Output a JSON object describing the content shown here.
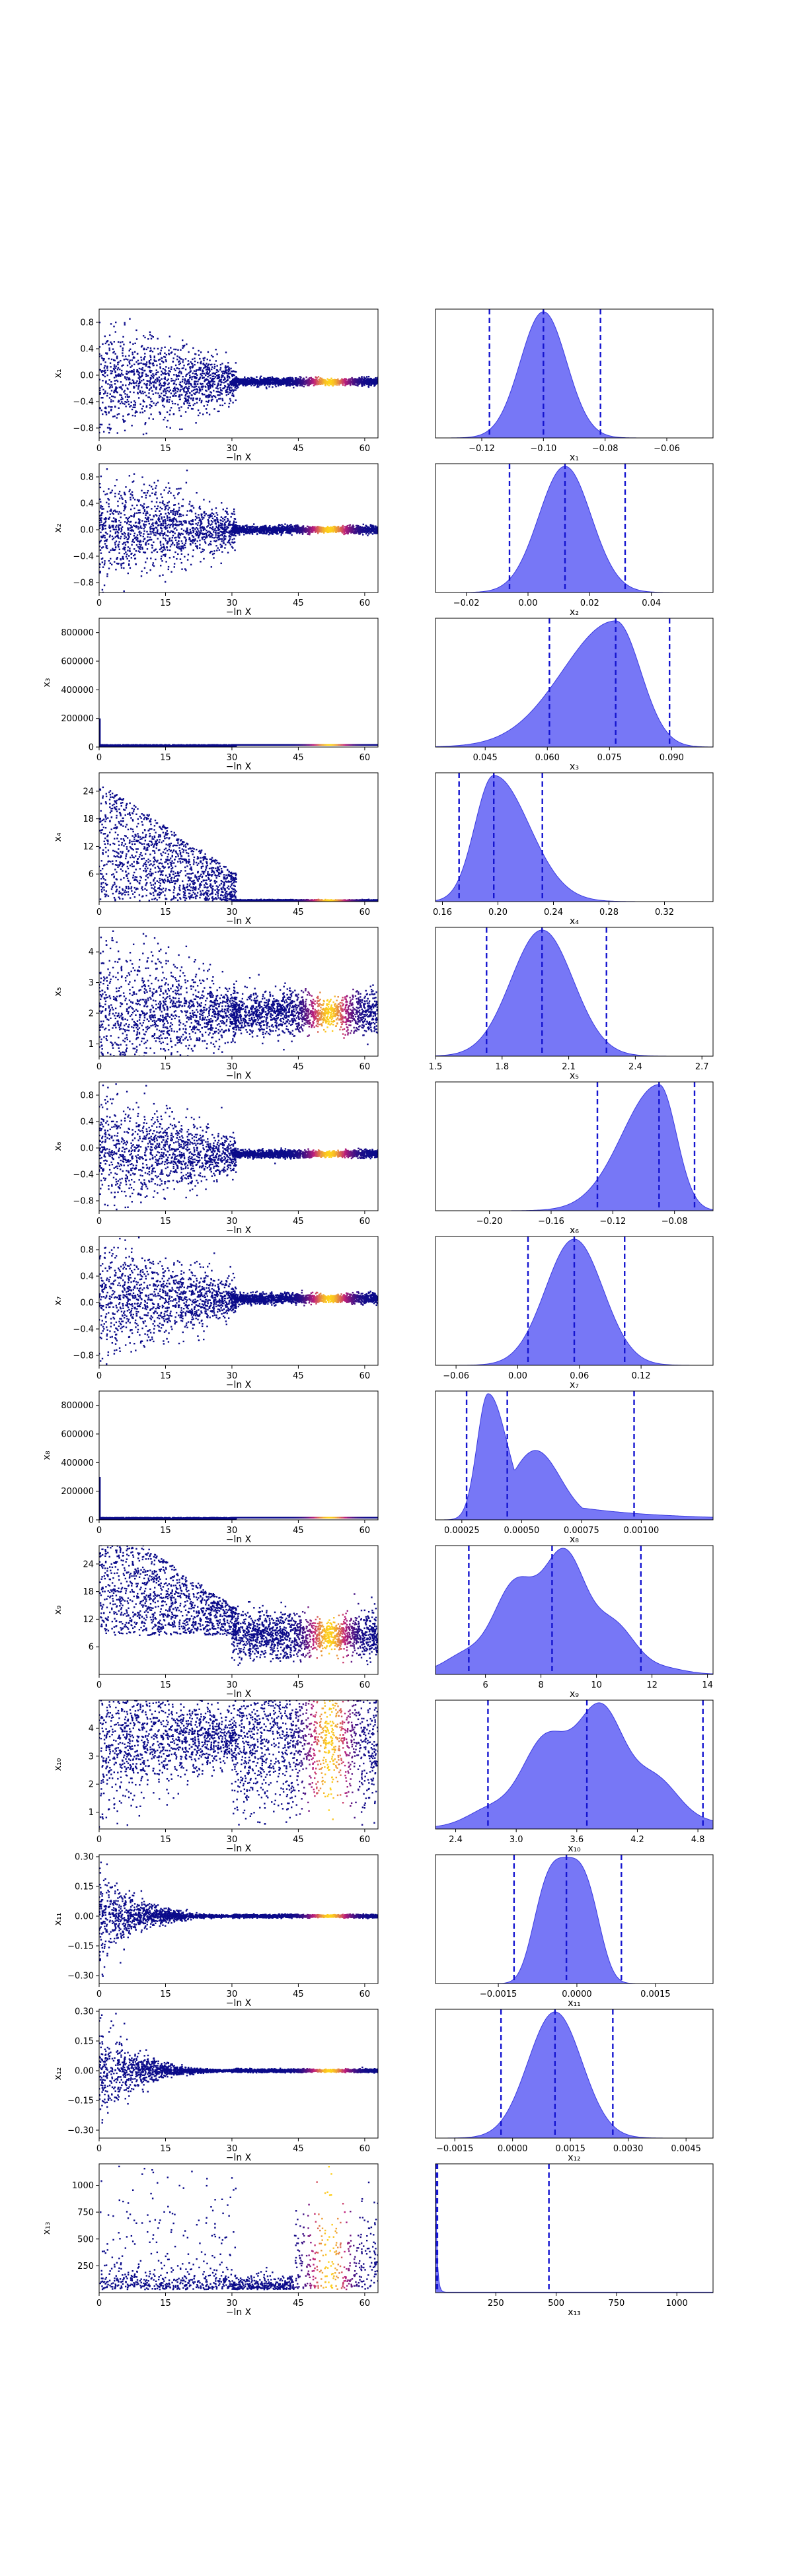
{
  "figure": {
    "trace_x_label": "−ln X",
    "trace_x_ticks": [
      0,
      15,
      30,
      45,
      60
    ],
    "trace_x_range": [
      0,
      63
    ],
    "colors": {
      "posterior_fill": "#6b6bf5",
      "posterior_line": "#3a3ae0",
      "quantile_line": "#1515d0",
      "trace_low": "#0b0b8a",
      "trace_mid": "#c0207a",
      "trace_high": "#ffd21a"
    }
  },
  "chart_data": [
    {
      "parameter": "x₁",
      "ylabel": "x₁",
      "trace": {
        "type": "scatter",
        "yticks": [
          -0.8,
          -0.4,
          0.0,
          0.4,
          0.8
        ],
        "ylim": [
          -0.95,
          1.0
        ],
        "converge": -0.1,
        "spread": 0.85,
        "tailSpread": 0.03
      },
      "posterior": {
        "type": "area",
        "xlabel": "x₁",
        "xlim": [
          -0.135,
          -0.045
        ],
        "xticks": [
          -0.12,
          -0.1,
          -0.08,
          -0.06
        ],
        "quantiles": [
          -0.1175,
          -0.1,
          -0.0815
        ],
        "shape": "gauss",
        "mean": -0.1,
        "sd": 0.0075
      }
    },
    {
      "parameter": "x₂",
      "ylabel": "x₂",
      "trace": {
        "type": "scatter",
        "yticks": [
          -0.8,
          -0.4,
          0.0,
          0.4,
          0.8
        ],
        "ylim": [
          -0.95,
          1.0
        ],
        "converge": 0.0,
        "spread": 0.85,
        "tailSpread": 0.03
      },
      "posterior": {
        "type": "area",
        "xlabel": "x₂",
        "xlim": [
          -0.03,
          0.06
        ],
        "xticks": [
          -0.02,
          0.0,
          0.02,
          0.04
        ],
        "quantiles": [
          -0.006,
          0.012,
          0.0315
        ],
        "shape": "gauss",
        "mean": 0.012,
        "sd": 0.0085
      }
    },
    {
      "parameter": "x₃",
      "ylabel": "x₃",
      "trace": {
        "type": "scatter",
        "yticks": [
          0,
          200000,
          400000,
          600000,
          800000
        ],
        "ylim": [
          0,
          900000
        ],
        "converge": 15000,
        "spread": 0,
        "tailSpread": 0,
        "spike": 200000
      },
      "posterior": {
        "type": "area",
        "xlabel": "x₃",
        "xlim": [
          0.033,
          0.1
        ],
        "xticks": [
          0.045,
          0.06,
          0.075,
          0.09
        ],
        "quantiles": [
          0.0605,
          0.0765,
          0.0895
        ],
        "shape": "skewleft",
        "mean": 0.0765,
        "sd": 0.008
      }
    },
    {
      "parameter": "x₄",
      "ylabel": "x₄",
      "trace": {
        "type": "scatter",
        "yticks": [
          6,
          12,
          18,
          24
        ],
        "ylim": [
          0,
          28
        ],
        "converge": 0.2,
        "spread": 26,
        "tailSpread": 0.1,
        "positive": true
      },
      "posterior": {
        "type": "area",
        "xlabel": "x₄",
        "xlim": [
          0.155,
          0.355
        ],
        "xticks": [
          0.16,
          0.2,
          0.24,
          0.28,
          0.32
        ],
        "quantiles": [
          0.172,
          0.197,
          0.232
        ],
        "shape": "skewright",
        "mean": 0.197,
        "sd": 0.017
      }
    },
    {
      "parameter": "x₅",
      "ylabel": "x₅",
      "trace": {
        "type": "scatter",
        "yticks": [
          1,
          2,
          3,
          4
        ],
        "ylim": [
          0.6,
          4.8
        ],
        "converge": 2.0,
        "spread": 2.6,
        "tailSpread": 0.35
      },
      "posterior": {
        "type": "area",
        "xlabel": "x₅",
        "xlim": [
          1.5,
          2.75
        ],
        "xticks": [
          1.5,
          1.8,
          2.1,
          2.4,
          2.7
        ],
        "quantiles": [
          1.73,
          1.98,
          2.27
        ],
        "shape": "gauss",
        "mean": 1.98,
        "sd": 0.14
      }
    },
    {
      "parameter": "x₆",
      "ylabel": "x₆",
      "trace": {
        "type": "scatter",
        "yticks": [
          -0.8,
          -0.4,
          0.0,
          0.4,
          0.8
        ],
        "ylim": [
          -0.95,
          1.0
        ],
        "converge": -0.09,
        "spread": 0.85,
        "tailSpread": 0.03
      },
      "posterior": {
        "type": "area",
        "xlabel": "x₆",
        "xlim": [
          -0.235,
          -0.055
        ],
        "xticks": [
          -0.2,
          -0.16,
          -0.12,
          -0.08
        ],
        "quantiles": [
          -0.13,
          -0.09,
          -0.067
        ],
        "shape": "skewleft",
        "mean": -0.09,
        "sd": 0.015
      }
    },
    {
      "parameter": "x₇",
      "ylabel": "x₇",
      "trace": {
        "type": "scatter",
        "yticks": [
          -0.8,
          -0.4,
          0.0,
          0.4,
          0.8
        ],
        "ylim": [
          -0.95,
          1.0
        ],
        "converge": 0.06,
        "spread": 0.85,
        "tailSpread": 0.04
      },
      "posterior": {
        "type": "area",
        "xlabel": "x₇",
        "xlim": [
          -0.08,
          0.19
        ],
        "xticks": [
          -0.06,
          0.0,
          0.06,
          0.12
        ],
        "quantiles": [
          0.01,
          0.055,
          0.104
        ],
        "shape": "gauss",
        "mean": 0.055,
        "sd": 0.028
      }
    },
    {
      "parameter": "x₈",
      "ylabel": "x₈",
      "trace": {
        "type": "scatter",
        "yticks": [
          0,
          200000,
          400000,
          600000,
          800000
        ],
        "ylim": [
          0,
          900000
        ],
        "converge": 15000,
        "spread": 0,
        "tailSpread": 0,
        "spike": 300000
      },
      "posterior": {
        "type": "area",
        "xlabel": "x₈",
        "xlim": [
          0.00014,
          0.0013
        ],
        "xticks": [
          0.00025,
          0.0005,
          0.00075,
          0.001
        ],
        "quantiles": [
          0.00027,
          0.00044,
          0.00097
        ],
        "shape": "longright",
        "mean": 0.00036,
        "sd": 8e-05
      }
    },
    {
      "parameter": "x₉",
      "ylabel": "x₉",
      "trace": {
        "type": "scatter",
        "yticks": [
          6,
          12,
          18,
          24
        ],
        "ylim": [
          0,
          28
        ],
        "converge": 8.5,
        "spread": 26,
        "tailSpread": 2.5,
        "positive": true
      },
      "posterior": {
        "type": "area",
        "xlabel": "x₉",
        "xlim": [
          4.2,
          14.2
        ],
        "xticks": [
          6,
          8,
          10,
          12,
          14
        ],
        "quantiles": [
          5.4,
          8.4,
          11.6
        ],
        "shape": "bumpy",
        "mean": 8.4,
        "sd": 1.8
      }
    },
    {
      "parameter": "x₁₀",
      "ylabel": "x₁₀",
      "trace": {
        "type": "scatter",
        "yticks": [
          1,
          2,
          3,
          4
        ],
        "ylim": [
          0.4,
          5.0
        ],
        "converge": 3.6,
        "spread": 2.5,
        "tailSpread": 1.4
      },
      "posterior": {
        "type": "area",
        "xlabel": "x₁₀",
        "xlim": [
          2.2,
          4.95
        ],
        "xticks": [
          2.4,
          3.0,
          3.6,
          4.2,
          4.8
        ],
        "quantiles": [
          2.72,
          3.7,
          4.85
        ],
        "shape": "bumpy",
        "mean": 3.7,
        "sd": 0.55
      }
    },
    {
      "parameter": "x₁₁",
      "ylabel": "x₁₁",
      "trace": {
        "type": "scatter",
        "yticks": [
          -0.3,
          -0.15,
          0.0,
          0.15,
          0.3
        ],
        "ylim": [
          -0.34,
          0.31
        ],
        "converge": 0.0,
        "spread": 0.3,
        "tailSpread": 0.004,
        "funnel": true
      },
      "posterior": {
        "type": "area",
        "xlabel": "x₁₁",
        "xlim": [
          -0.0027,
          0.0026
        ],
        "xticks": [
          -0.0015,
          0.0,
          0.0015
        ],
        "quantiles": [
          -0.0012,
          -0.0002,
          0.00085
        ],
        "shape": "flattop",
        "mean": -0.0002,
        "sd": 0.0005
      }
    },
    {
      "parameter": "x₁₂",
      "ylabel": "x₁₂",
      "trace": {
        "type": "scatter",
        "yticks": [
          -0.3,
          -0.15,
          0.0,
          0.15,
          0.3
        ],
        "ylim": [
          -0.34,
          0.31
        ],
        "converge": 0.0,
        "spread": 0.3,
        "tailSpread": 0.004,
        "funnel": true
      },
      "posterior": {
        "type": "area",
        "xlabel": "x₁₂",
        "xlim": [
          -0.002,
          0.0052
        ],
        "xticks": [
          -0.0015,
          0.0,
          0.0015,
          0.003,
          0.0045
        ],
        "quantiles": [
          -0.0003,
          0.0011,
          0.0026
        ],
        "shape": "gauss",
        "mean": 0.0011,
        "sd": 0.0007
      }
    },
    {
      "parameter": "x₁₃",
      "ylabel": "x₁₃",
      "trace": {
        "type": "scatter",
        "yticks": [
          250,
          500,
          750,
          1000
        ],
        "ylim": [
          0,
          1200
        ],
        "converge": 30,
        "spread": 1150,
        "tailSpread": 0,
        "sparse": true
      },
      "posterior": {
        "type": "area",
        "xlabel": "x₁₃",
        "xlim": [
          0,
          1150
        ],
        "xticks": [
          250,
          500,
          750,
          1000
        ],
        "quantiles": [
          3,
          8,
          470
        ],
        "shape": "spike",
        "mean": 8,
        "sd": 6
      }
    }
  ]
}
